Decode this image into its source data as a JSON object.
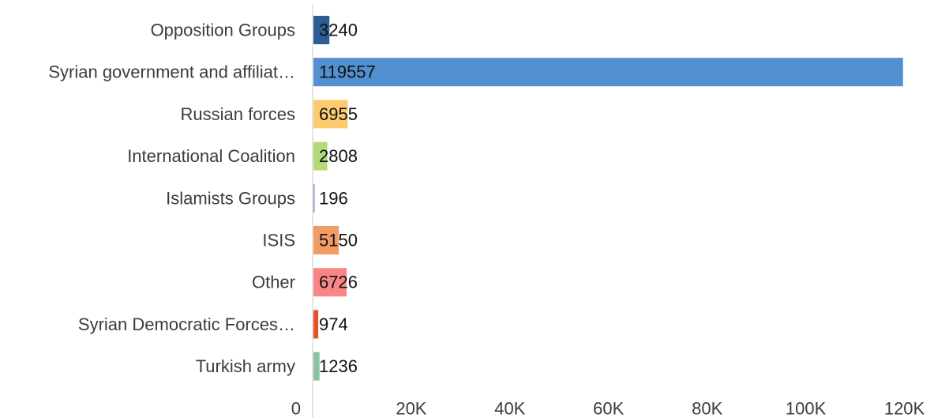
{
  "chart_data": {
    "type": "bar",
    "orientation": "horizontal",
    "categories": [
      "Opposition Groups",
      "Syrian government and affiliat…",
      "Russian forces",
      "International Coalition",
      "Islamists Groups",
      "ISIS",
      "Other",
      "Syrian Democratic Forces…",
      "Turkish army"
    ],
    "values": [
      3240,
      119557,
      6955,
      2808,
      196,
      5150,
      6726,
      974,
      1236
    ],
    "value_labels": [
      "3240",
      "119557",
      "6955",
      "2808",
      "196",
      "5150",
      "6726",
      "974",
      "1236"
    ],
    "colors": [
      "#2e5d93",
      "#5290cf",
      "#fccb6e",
      "#b4d979",
      "#8a8fd0",
      "#f39b65",
      "#f98684",
      "#e4522a",
      "#88c4a4"
    ],
    "title": "",
    "xlabel": "",
    "ylabel": "",
    "xlim": [
      0,
      126000
    ],
    "x_ticks": [
      0,
      20000,
      40000,
      60000,
      80000,
      100000,
      120000
    ],
    "x_tick_labels": [
      "0",
      "20K",
      "40K",
      "60K",
      "80K",
      "100K",
      "120K"
    ],
    "grid": false,
    "legend": "none"
  }
}
